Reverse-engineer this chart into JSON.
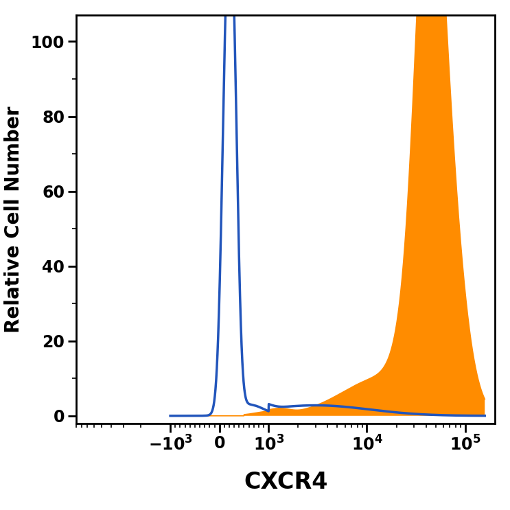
{
  "title": "",
  "xlabel": "CXCR4",
  "ylabel": "Relative Cell Number",
  "xlim": [
    -1000,
    200000
  ],
  "ylim": [
    -2,
    107
  ],
  "yticks": [
    0,
    20,
    40,
    60,
    80,
    100
  ],
  "blue_color": "#2255BB",
  "orange_color": "#FF8C00",
  "xlabel_fontsize": 24,
  "ylabel_fontsize": 20,
  "tick_fontsize": 17,
  "axis_linewidth": 2.0,
  "background_color": "#ffffff",
  "linthresh": 1000,
  "linscale": 0.45
}
